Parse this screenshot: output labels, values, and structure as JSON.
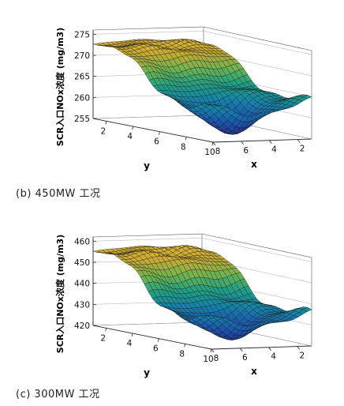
{
  "panels": [
    {
      "caption": "(b) 450MW 工况",
      "chart_data": {
        "type": "surface",
        "xlabel": "x",
        "ylabel": "y",
        "zlabel": "SCR入口NOx浓度 (mg/m3)",
        "x_ticks": [
          2,
          4,
          6,
          8
        ],
        "y_ticks": [
          2,
          4,
          6,
          8,
          10
        ],
        "z_ticks": [
          255,
          260,
          265,
          270,
          275
        ],
        "x_range": [
          1,
          8
        ],
        "y_range": [
          1,
          10
        ],
        "zlim": [
          255,
          276
        ],
        "z_back_plateau": 273,
        "z_front_plateau": 264.5,
        "z_valley_min": 256
      }
    },
    {
      "caption": "(c) 300MW 工况",
      "chart_data": {
        "type": "surface",
        "xlabel": "x",
        "ylabel": "y",
        "zlabel": "SCR入口NOx浓度 (mg/m3)",
        "x_ticks": [
          2,
          4,
          6,
          8
        ],
        "y_ticks": [
          2,
          4,
          6,
          8,
          10
        ],
        "z_ticks": [
          420,
          430,
          440,
          450,
          460
        ],
        "x_range": [
          1,
          8
        ],
        "y_range": [
          1,
          10
        ],
        "zlim": [
          420,
          462
        ],
        "z_back_plateau": 456,
        "z_front_plateau": 436,
        "z_valley_min": 423
      }
    }
  ]
}
